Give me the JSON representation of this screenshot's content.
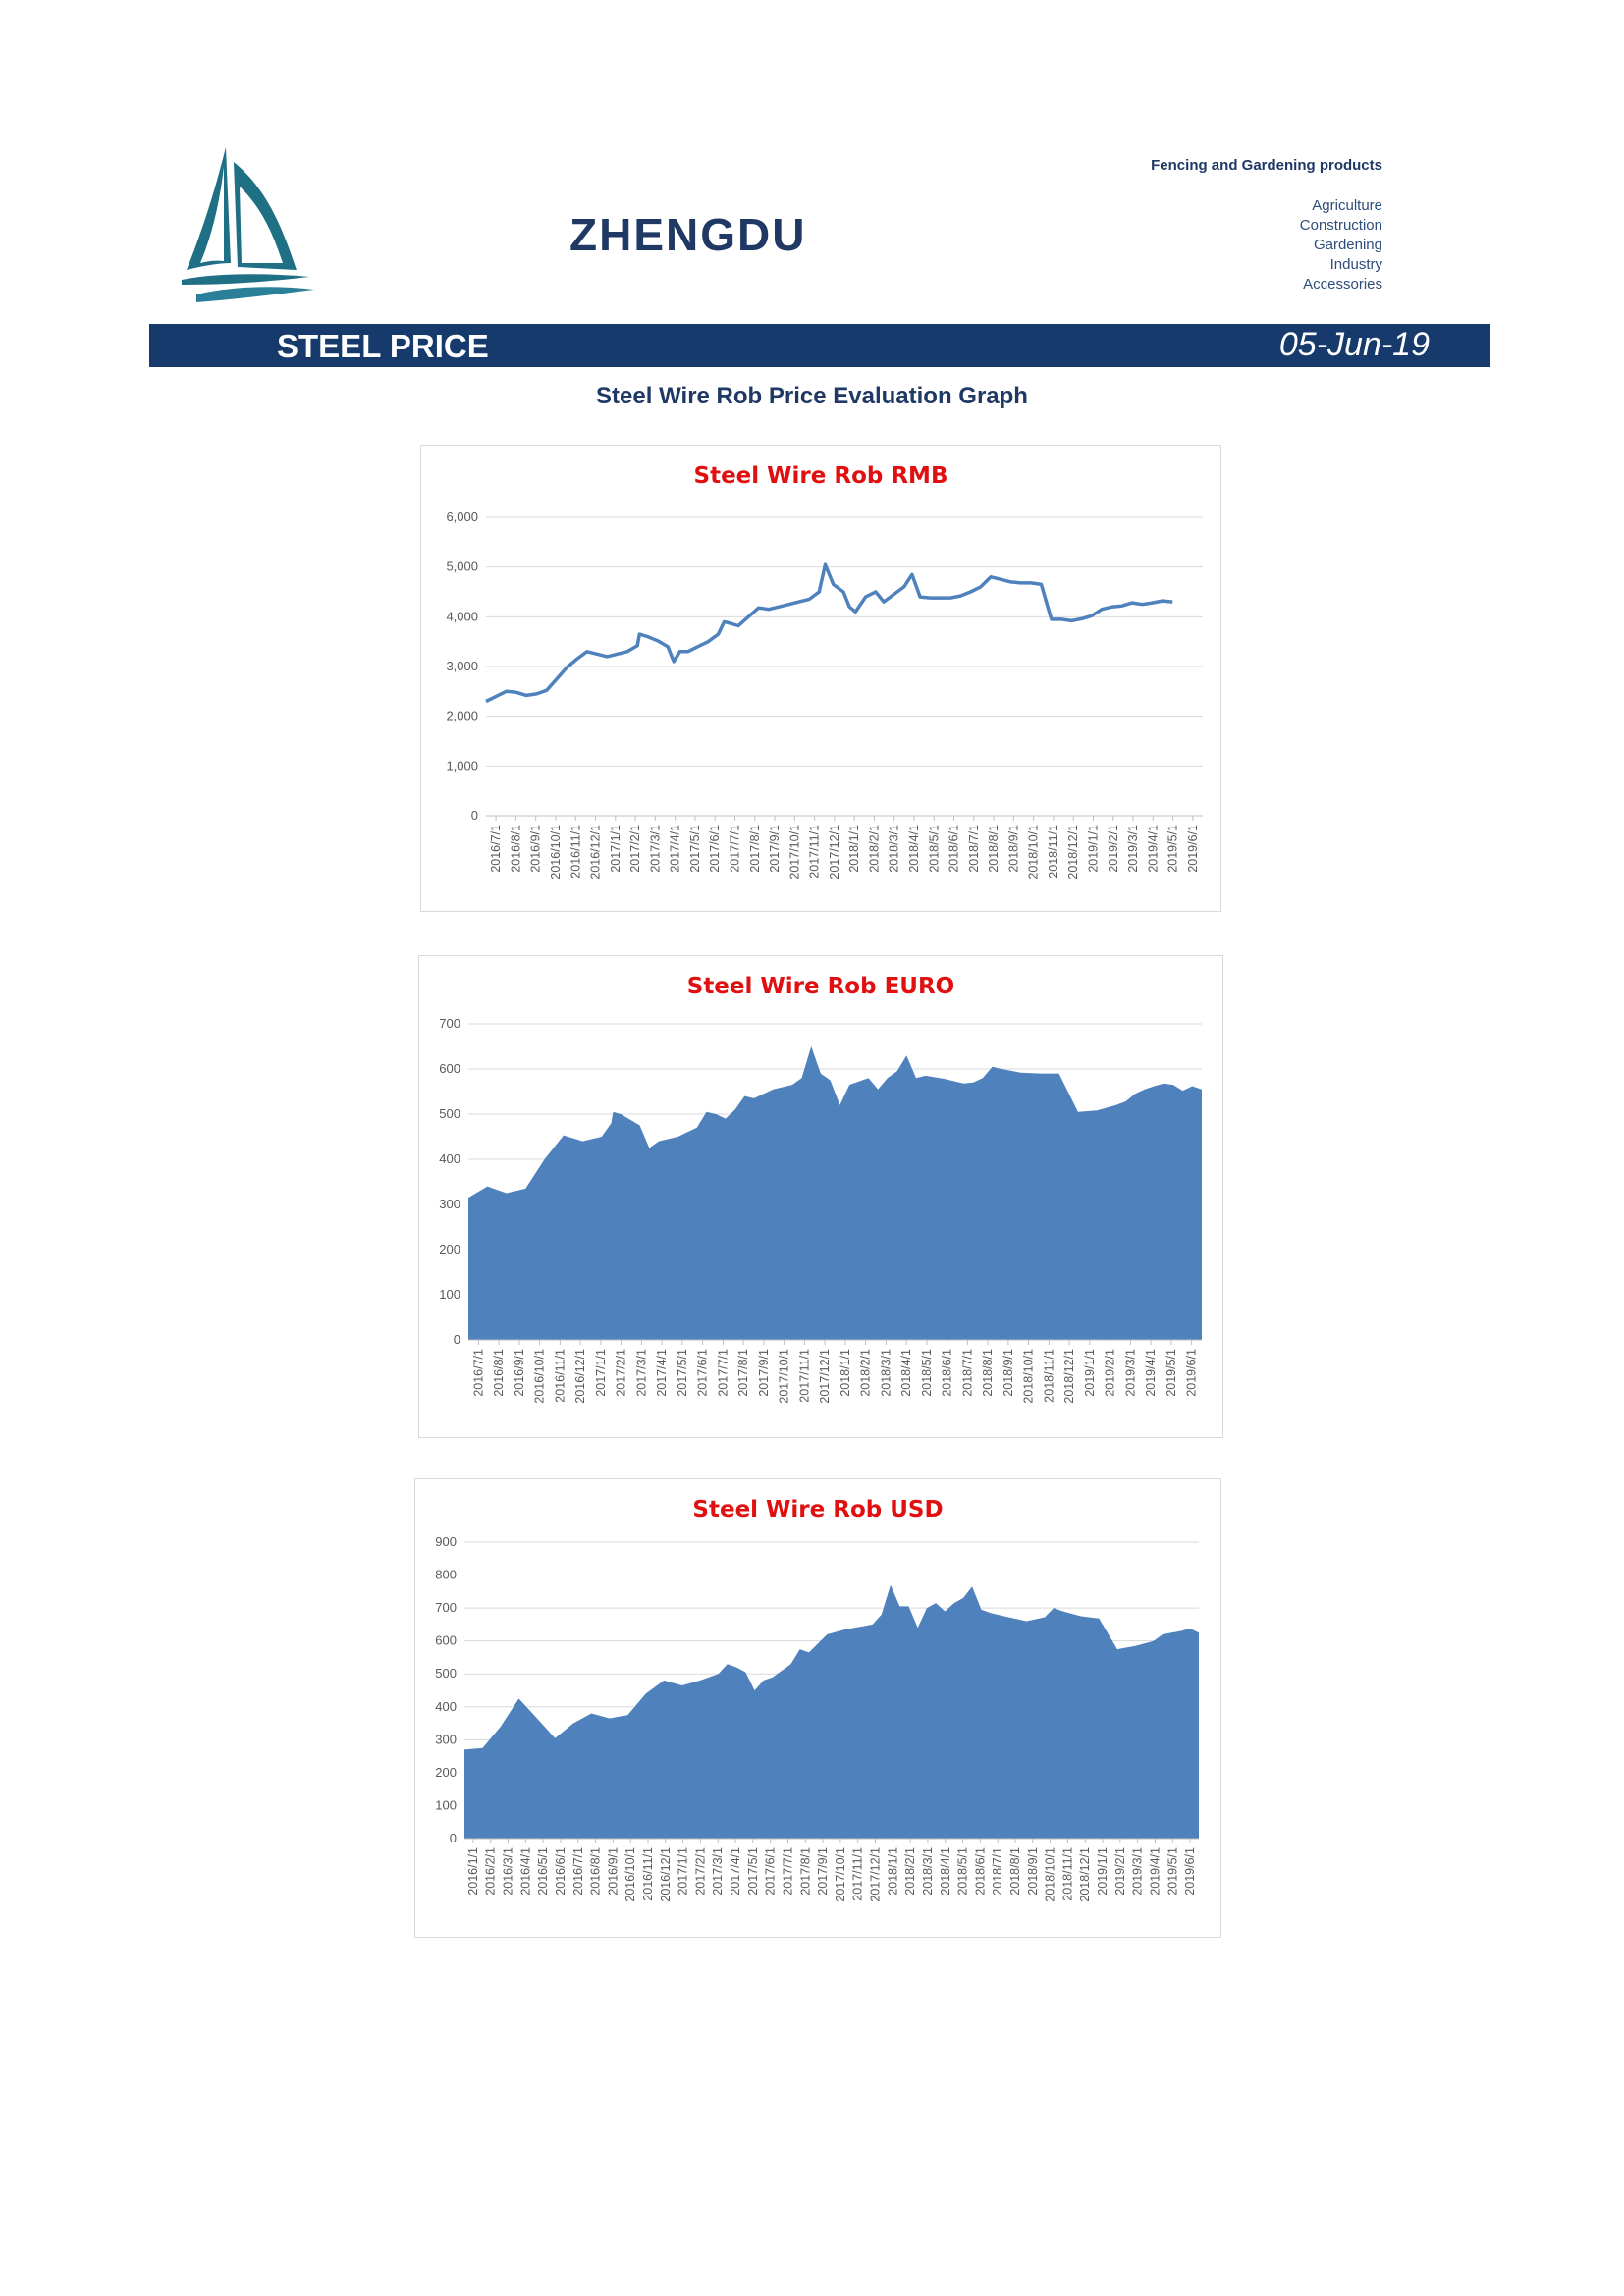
{
  "header": {
    "brand": "ZHENGDU",
    "tagline": "Fencing and Gardening products",
    "categories": [
      "Agriculture",
      "Construction",
      "Gardening",
      "Industry",
      "Accessories"
    ]
  },
  "banner": {
    "title": "STEEL PRICE",
    "date": "05-Jun-19"
  },
  "section_title": "Steel Wire Rob Price Evaluation Graph",
  "colors": {
    "banner_bg": "#163a6b",
    "brand_text": "#1f3864",
    "chart_title": "#e01010",
    "series": "#4f81bd"
  },
  "chart_data": [
    {
      "type": "line",
      "title": "Steel Wire Rob RMB",
      "xlabel": "",
      "ylabel": "",
      "ylim": [
        0,
        6000
      ],
      "yticks": [
        0,
        1000,
        2000,
        3000,
        4000,
        5000,
        6000
      ],
      "ytick_labels": [
        "0",
        "1,000",
        "2,000",
        "3,000",
        "4,000",
        "5,000",
        "6,000"
      ],
      "grid": true,
      "x_labels": [
        "2016/7/1",
        "2016/8/1",
        "2016/9/1",
        "2016/10/1",
        "2016/11/1",
        "2016/12/1",
        "2017/1/1",
        "2017/2/1",
        "2017/3/1",
        "2017/4/1",
        "2017/5/1",
        "2017/6/1",
        "2017/7/1",
        "2017/8/1",
        "2017/9/1",
        "2017/10/1",
        "2017/11/1",
        "2017/12/1",
        "2018/1/1",
        "2018/2/1",
        "2018/3/1",
        "2018/4/1",
        "2018/5/1",
        "2018/6/1",
        "2018/7/1",
        "2018/8/1",
        "2018/9/1",
        "2018/10/1",
        "2018/11/1",
        "2018/12/1",
        "2019/1/1",
        "2019/2/1",
        "2019/3/1",
        "2019/4/1",
        "2019/5/1",
        "2019/6/1"
      ],
      "x_start": 0,
      "x_end": 35.5,
      "points": [
        [
          0,
          2300
        ],
        [
          0.5,
          2400
        ],
        [
          1,
          2500
        ],
        [
          1.5,
          2480
        ],
        [
          2,
          2420
        ],
        [
          2.5,
          2450
        ],
        [
          3,
          2520
        ],
        [
          3.5,
          2750
        ],
        [
          4,
          2980
        ],
        [
          4.5,
          3150
        ],
        [
          5,
          3300
        ],
        [
          5.5,
          3250
        ],
        [
          6,
          3200
        ],
        [
          6.5,
          3250
        ],
        [
          7,
          3300
        ],
        [
          7.5,
          3420
        ],
        [
          7.6,
          3650
        ],
        [
          8,
          3600
        ],
        [
          8.5,
          3520
        ],
        [
          9,
          3400
        ],
        [
          9.3,
          3100
        ],
        [
          9.6,
          3300
        ],
        [
          10,
          3300
        ],
        [
          10.5,
          3400
        ],
        [
          11,
          3500
        ],
        [
          11.5,
          3650
        ],
        [
          11.8,
          3900
        ],
        [
          12,
          3880
        ],
        [
          12.5,
          3820
        ],
        [
          13,
          4000
        ],
        [
          13.5,
          4180
        ],
        [
          14,
          4150
        ],
        [
          14.5,
          4200
        ],
        [
          15,
          4250
        ],
        [
          15.5,
          4300
        ],
        [
          16,
          4350
        ],
        [
          16.5,
          4500
        ],
        [
          16.8,
          5050
        ],
        [
          17.2,
          4650
        ],
        [
          17.7,
          4500
        ],
        [
          18,
          4200
        ],
        [
          18.3,
          4100
        ],
        [
          18.8,
          4400
        ],
        [
          19.3,
          4500
        ],
        [
          19.7,
          4300
        ],
        [
          20.2,
          4450
        ],
        [
          20.7,
          4600
        ],
        [
          21.1,
          4850
        ],
        [
          21.5,
          4400
        ],
        [
          22,
          4380
        ],
        [
          22.5,
          4380
        ],
        [
          23,
          4380
        ],
        [
          23.5,
          4420
        ],
        [
          24,
          4500
        ],
        [
          24.5,
          4600
        ],
        [
          25,
          4800
        ],
        [
          25.5,
          4750
        ],
        [
          26,
          4700
        ],
        [
          26.5,
          4680
        ],
        [
          27,
          4680
        ],
        [
          27.5,
          4650
        ],
        [
          28,
          3950
        ],
        [
          28.5,
          3950
        ],
        [
          29,
          3920
        ],
        [
          29.5,
          3960
        ],
        [
          30,
          4020
        ],
        [
          30.5,
          4150
        ],
        [
          31,
          4200
        ],
        [
          31.5,
          4220
        ],
        [
          32,
          4280
        ],
        [
          32.5,
          4250
        ],
        [
          33,
          4280
        ],
        [
          33.5,
          4320
        ],
        [
          34,
          4300
        ]
      ]
    },
    {
      "type": "area",
      "title": "Steel Wire Rob EURO",
      "xlabel": "",
      "ylabel": "",
      "ylim": [
        0,
        700
      ],
      "yticks": [
        0,
        100,
        200,
        300,
        400,
        500,
        600,
        700
      ],
      "ytick_labels": [
        "0",
        "100",
        "200",
        "300",
        "400",
        "500",
        "600",
        "700"
      ],
      "grid": true,
      "x_labels": [
        "2016/7/1",
        "2016/8/1",
        "2016/9/1",
        "2016/10/1",
        "2016/11/1",
        "2016/12/1",
        "2017/1/1",
        "2017/2/1",
        "2017/3/1",
        "2017/4/1",
        "2017/5/1",
        "2017/6/1",
        "2017/7/1",
        "2017/8/1",
        "2017/9/1",
        "2017/10/1",
        "2017/11/1",
        "2017/12/1",
        "2018/1/1",
        "2018/2/1",
        "2018/3/1",
        "2018/4/1",
        "2018/5/1",
        "2018/6/1",
        "2018/7/1",
        "2018/8/1",
        "2018/9/1",
        "2018/10/1",
        "2018/11/1",
        "2018/12/1",
        "2019/1/1",
        "2019/2/1",
        "2019/3/1",
        "2019/4/1",
        "2019/5/1",
        "2019/6/1"
      ],
      "x_start": 0,
      "x_end": 35,
      "points": [
        [
          0,
          315
        ],
        [
          1,
          340
        ],
        [
          2,
          325
        ],
        [
          3,
          335
        ],
        [
          4,
          400
        ],
        [
          5,
          453
        ],
        [
          6,
          440
        ],
        [
          7,
          450
        ],
        [
          7.5,
          480
        ],
        [
          7.6,
          505
        ],
        [
          8,
          500
        ],
        [
          9,
          475
        ],
        [
          9.5,
          425
        ],
        [
          10,
          440
        ],
        [
          11,
          450
        ],
        [
          12,
          470
        ],
        [
          12.5,
          505
        ],
        [
          13,
          500
        ],
        [
          13.5,
          490
        ],
        [
          14,
          510
        ],
        [
          14.5,
          540
        ],
        [
          15,
          535
        ],
        [
          16,
          555
        ],
        [
          17,
          565
        ],
        [
          17.5,
          580
        ],
        [
          18,
          650
        ],
        [
          18.5,
          590
        ],
        [
          19,
          575
        ],
        [
          19.5,
          520
        ],
        [
          20,
          565
        ],
        [
          21,
          580
        ],
        [
          21.5,
          555
        ],
        [
          22,
          580
        ],
        [
          22.5,
          595
        ],
        [
          23,
          630
        ],
        [
          23.5,
          580
        ],
        [
          24,
          585
        ],
        [
          25,
          578
        ],
        [
          26,
          568
        ],
        [
          26.5,
          570
        ],
        [
          27,
          580
        ],
        [
          27.5,
          605
        ],
        [
          28,
          600
        ],
        [
          29,
          592
        ],
        [
          30,
          590
        ],
        [
          31,
          590
        ],
        [
          32,
          505
        ],
        [
          33,
          508
        ],
        [
          34,
          520
        ],
        [
          34.5,
          528
        ],
        [
          35,
          545
        ],
        [
          35.5,
          555
        ],
        [
          36,
          562
        ],
        [
          36.5,
          568
        ],
        [
          37,
          565
        ],
        [
          37.5,
          552
        ],
        [
          38,
          562
        ],
        [
          38.5,
          555
        ]
      ]
    },
    {
      "type": "area",
      "title": "Steel Wire Rob USD",
      "xlabel": "",
      "ylabel": "",
      "ylim": [
        0,
        900
      ],
      "yticks": [
        0,
        100,
        200,
        300,
        400,
        500,
        600,
        700,
        800,
        900
      ],
      "ytick_labels": [
        "0",
        "100",
        "200",
        "300",
        "400",
        "500",
        "600",
        "700",
        "800",
        "900"
      ],
      "grid": true,
      "x_labels": [
        "2016/1/1",
        "2016/2/1",
        "2016/3/1",
        "2016/4/1",
        "2016/5/1",
        "2016/6/1",
        "2016/7/1",
        "2016/8/1",
        "2016/9/1",
        "2016/10/1",
        "2016/11/1",
        "2016/12/1",
        "2017/1/1",
        "2017/2/1",
        "2017/3/1",
        "2017/4/1",
        "2017/5/1",
        "2017/6/1",
        "2017/7/1",
        "2017/8/1",
        "2017/9/1",
        "2017/10/1",
        "2017/11/1",
        "2017/12/1",
        "2018/1/1",
        "2018/2/1",
        "2018/3/1",
        "2018/4/1",
        "2018/5/1",
        "2018/6/1",
        "2018/7/1",
        "2018/8/1",
        "2018/9/1",
        "2018/10/1",
        "2018/11/1",
        "2018/12/1",
        "2019/1/1",
        "2019/2/1",
        "2019/3/1",
        "2019/4/1",
        "2019/5/1",
        "2019/6/1"
      ],
      "x_start": 0,
      "x_end": 41,
      "points": [
        [
          0,
          270
        ],
        [
          1,
          275
        ],
        [
          2,
          340
        ],
        [
          3,
          425
        ],
        [
          4,
          365
        ],
        [
          5,
          305
        ],
        [
          6,
          350
        ],
        [
          7,
          380
        ],
        [
          8,
          365
        ],
        [
          9,
          375
        ],
        [
          10,
          440
        ],
        [
          11,
          480
        ],
        [
          12,
          465
        ],
        [
          13,
          480
        ],
        [
          14,
          500
        ],
        [
          14.5,
          530
        ],
        [
          15,
          520
        ],
        [
          15.5,
          505
        ],
        [
          16,
          450
        ],
        [
          16.5,
          480
        ],
        [
          17,
          490
        ],
        [
          18,
          530
        ],
        [
          18.5,
          575
        ],
        [
          19,
          565
        ],
        [
          20,
          620
        ],
        [
          21,
          635
        ],
        [
          22,
          645
        ],
        [
          22.5,
          650
        ],
        [
          23,
          680
        ],
        [
          23.5,
          770
        ],
        [
          24,
          705
        ],
        [
          24.5,
          705
        ],
        [
          25,
          640
        ],
        [
          25.5,
          700
        ],
        [
          26,
          715
        ],
        [
          26.5,
          690
        ],
        [
          27,
          715
        ],
        [
          27.5,
          730
        ],
        [
          28,
          765
        ],
        [
          28.5,
          695
        ],
        [
          29,
          685
        ],
        [
          30,
          672
        ],
        [
          31,
          660
        ],
        [
          32,
          672
        ],
        [
          32.5,
          700
        ],
        [
          33,
          690
        ],
        [
          34,
          675
        ],
        [
          35,
          668
        ],
        [
          36,
          575
        ],
        [
          37,
          585
        ],
        [
          38,
          600
        ],
        [
          38.5,
          620
        ],
        [
          39,
          625
        ],
        [
          39.5,
          630
        ],
        [
          40,
          638
        ],
        [
          40.5,
          625
        ]
      ]
    }
  ]
}
